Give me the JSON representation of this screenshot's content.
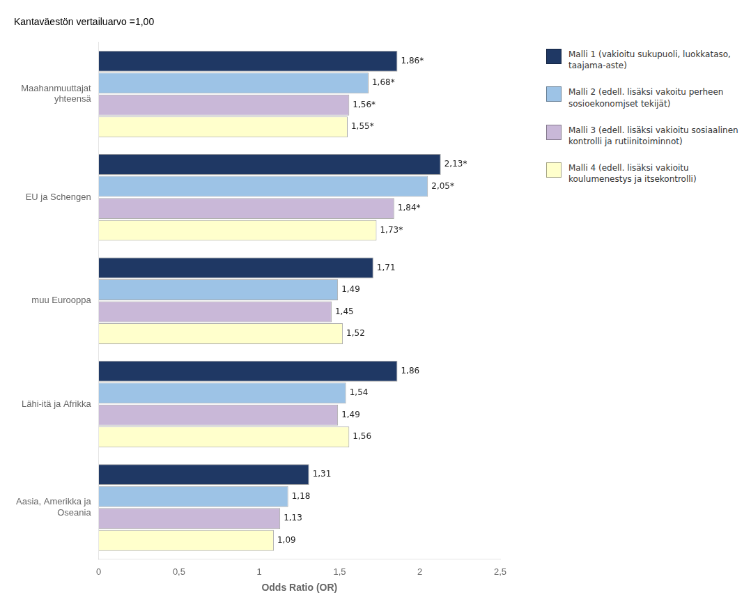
{
  "chart_data": {
    "type": "bar",
    "orientation": "horizontal",
    "annotation": "Kantaväestön vertailuarvo =1,00",
    "x_label": "Odds Ratio (OR)",
    "categories": [
      "Maahanmuuttajat\nyhteensä",
      "EU ja Schengen",
      "muu Eurooppa",
      "Lähi-itä ja Afrikka",
      "Aasia, Amerikka ja\nOseania"
    ],
    "series": [
      {
        "name": "Malli 1 (vakioitu sukupuoli, luokkataso,\ntaajama-aste)",
        "color": "#1f3864",
        "values": [
          1.86,
          2.13,
          1.71,
          1.86,
          1.31
        ],
        "value_labels": [
          "1,86*",
          "2,13*",
          "1,71",
          "1,86",
          "1,31"
        ]
      },
      {
        "name": "Malli 2 (edell. lisäksi vakoitu perheen\nsosioekonomjset tekijät)",
        "color": "#9dc3e6",
        "values": [
          1.68,
          2.05,
          1.49,
          1.54,
          1.18
        ],
        "value_labels": [
          "1,68*",
          "2,05*",
          "1,49",
          "1,54",
          "1,18"
        ]
      },
      {
        "name": "Malli 3 (edell. lisäksi vakioitu sosiaalinen\nkontrolli ja rutiinitoiminnot)",
        "color": "#c9b8d8",
        "values": [
          1.56,
          1.84,
          1.45,
          1.49,
          1.13
        ],
        "value_labels": [
          "1,56*",
          "1,84*",
          "1,45",
          "1,49",
          "1,13"
        ]
      },
      {
        "name": "Malli 4 (edell. lisäksi vakioitu\nkoulumenestys ja itsekontrolli)",
        "color": "#ffffcc",
        "values": [
          1.55,
          1.73,
          1.52,
          1.56,
          1.09
        ],
        "value_labels": [
          "1,55*",
          "1,73*",
          "1,52",
          "1,56",
          "1,09"
        ]
      }
    ],
    "xlim": [
      0,
      2.5
    ],
    "xticks": [
      0,
      {
        "value": 0.5,
        "label": "0,5"
      },
      1,
      {
        "value": 1.5,
        "label": "1,5"
      },
      2,
      {
        "value": 2.5,
        "label": "2,5"
      }
    ],
    "grid": false,
    "legend": "right",
    "data_labels": true
  }
}
